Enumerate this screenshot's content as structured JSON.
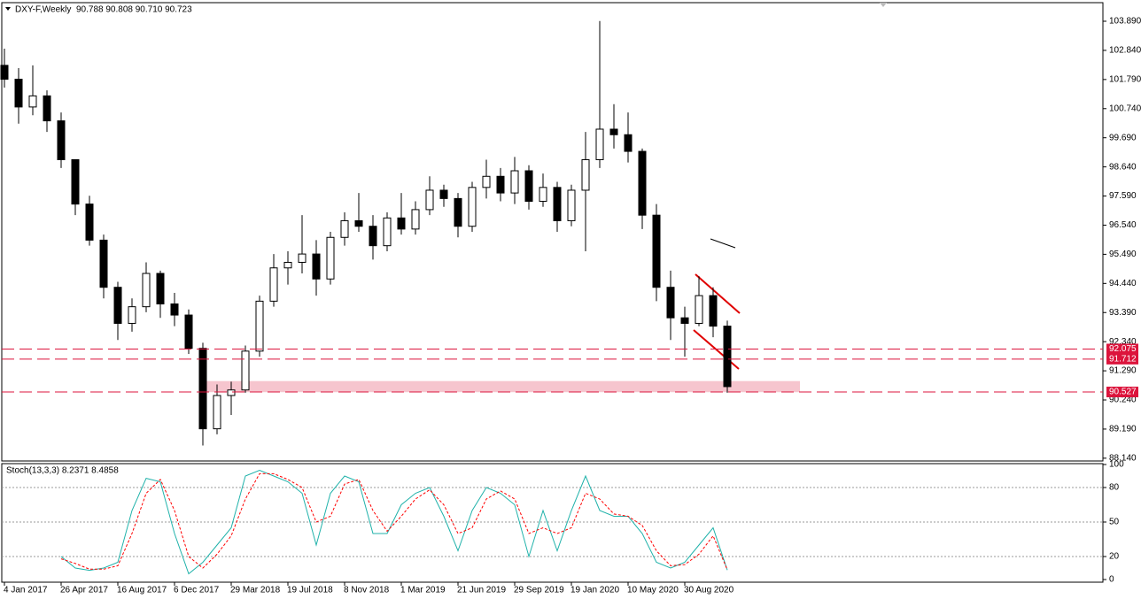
{
  "chart_data": [
    {
      "type": "candlestick",
      "title": "DXY-F,Weekly",
      "subtitle": "90.788 90.808 90.710 90.723",
      "categories": [
        "4 Jan 2017",
        null,
        null,
        null,
        "26 Apr 2017",
        null,
        null,
        null,
        "16 Aug 2017",
        null,
        null,
        null,
        "6 Dec 2017",
        null,
        null,
        null,
        "29 Mar 2018",
        null,
        null,
        null,
        "19 Jul 2018",
        null,
        null,
        null,
        "8 Nov 2018",
        null,
        null,
        null,
        "1 Mar 2019",
        null,
        null,
        null,
        "21 Jun 2019",
        null,
        null,
        null,
        "29 Sep 2019",
        null,
        null,
        null,
        "19 Jan 2020",
        null,
        null,
        null,
        "10 May 2020",
        null,
        null,
        null,
        "30 Aug 2020",
        null,
        null,
        null
      ],
      "open": [
        102.3,
        101.8,
        100.8,
        101.2,
        100.3,
        98.9,
        97.3,
        96.0,
        94.3,
        93.0,
        93.6,
        94.8,
        93.7,
        93.3,
        92.1,
        89.2,
        90.4,
        90.6,
        92.0,
        93.8,
        95.0,
        95.2,
        95.5,
        94.6,
        96.1,
        96.7,
        96.5,
        95.8,
        96.8,
        96.4,
        97.1,
        97.8,
        97.5,
        96.5,
        97.9,
        98.3,
        97.7,
        98.5,
        97.4,
        97.9,
        96.7,
        97.8,
        98.9,
        100.0,
        99.8,
        99.2,
        96.9,
        94.3,
        93.2,
        93.0,
        94.0,
        92.9
      ],
      "high": [
        102.9,
        102.2,
        102.3,
        101.4,
        100.6,
        98.9,
        97.6,
        96.2,
        94.5,
        93.9,
        95.2,
        94.9,
        94.1,
        93.5,
        92.3,
        90.8,
        90.9,
        92.2,
        94.0,
        95.5,
        95.6,
        96.9,
        96.0,
        96.3,
        97.0,
        97.7,
        96.9,
        97.0,
        97.7,
        97.4,
        98.3,
        98.0,
        97.7,
        98.1,
        98.9,
        98.6,
        99.0,
        98.7,
        98.4,
        98.1,
        98.0,
        99.9,
        103.9,
        100.9,
        100.6,
        99.3,
        97.3,
        94.9,
        93.6,
        94.7,
        94.3,
        93.1
      ],
      "low": [
        101.5,
        100.2,
        100.5,
        99.9,
        98.6,
        96.9,
        95.8,
        93.9,
        92.4,
        92.7,
        93.4,
        93.2,
        92.9,
        91.9,
        88.6,
        89.0,
        89.7,
        90.5,
        91.8,
        93.6,
        94.4,
        94.8,
        94.0,
        94.4,
        95.8,
        96.3,
        95.3,
        95.6,
        96.2,
        96.2,
        96.9,
        97.2,
        96.1,
        96.3,
        97.5,
        97.4,
        97.3,
        97.1,
        97.2,
        96.3,
        96.5,
        95.6,
        98.6,
        99.3,
        98.8,
        96.4,
        93.8,
        92.4,
        91.8,
        92.9,
        92.5,
        90.5
      ],
      "close": [
        101.8,
        100.8,
        101.2,
        100.3,
        98.9,
        97.3,
        96.0,
        94.3,
        93.0,
        93.6,
        94.8,
        93.7,
        93.3,
        92.1,
        89.2,
        90.4,
        90.6,
        92.0,
        93.8,
        95.0,
        95.2,
        95.5,
        94.6,
        96.1,
        96.7,
        96.5,
        95.8,
        96.8,
        96.4,
        97.1,
        97.8,
        97.5,
        96.5,
        97.9,
        98.3,
        97.7,
        98.5,
        97.4,
        97.9,
        96.7,
        97.8,
        98.9,
        100.0,
        99.8,
        99.2,
        96.9,
        94.3,
        93.2,
        93.0,
        94.0,
        92.9,
        90.72
      ],
      "up_color": "#ffffff",
      "down_color": "#000000",
      "ylim": [
        88.04,
        104.56
      ],
      "yticks": [
        {
          "value": 103.89,
          "label": "103.890"
        },
        {
          "value": 102.84,
          "label": "102.840"
        },
        {
          "value": 101.79,
          "label": "101.790"
        },
        {
          "value": 100.74,
          "label": "100.740"
        },
        {
          "value": 99.69,
          "label": "99.690"
        },
        {
          "value": 98.64,
          "label": "98.640"
        },
        {
          "value": 97.59,
          "label": "97.590"
        },
        {
          "value": 96.54,
          "label": "96.540"
        },
        {
          "value": 95.49,
          "label": "95.490"
        },
        {
          "value": 94.44,
          "label": "94.440"
        },
        {
          "value": 93.39,
          "label": "93.390"
        },
        {
          "value": 92.34,
          "label": "92.340"
        },
        {
          "value": 91.29,
          "label": "91.290"
        },
        {
          "value": 90.24,
          "label": "90.240"
        },
        {
          "value": 89.19,
          "label": "89.190"
        },
        {
          "value": 88.14,
          "label": "88.140"
        }
      ],
      "hlines": [
        92.075,
        91.712,
        90.527
      ],
      "hline_color": "#dc143c",
      "zone": [
        90.52,
        90.92
      ],
      "zone_color": "#f4b6c2"
    },
    {
      "type": "line",
      "title": "Stoch(13,3,3) 8.2371 8.4858",
      "series": [
        {
          "color": "#20b2aa",
          "values": [
            null,
            null,
            null,
            null,
            20,
            10,
            8,
            10,
            15,
            60,
            88,
            85,
            40,
            5,
            15,
            30,
            45,
            90,
            95,
            90,
            85,
            75,
            30,
            75,
            90,
            85,
            40,
            40,
            65,
            75,
            80,
            55,
            25,
            60,
            80,
            75,
            65,
            20,
            60,
            25,
            60,
            90,
            60,
            55,
            55,
            40,
            15,
            10,
            15,
            30,
            45,
            8.2371
          ]
        },
        {
          "color": "#ff0000",
          "dashed": true,
          "values": [
            null,
            null,
            null,
            null,
            18,
            14,
            9,
            9,
            12,
            40,
            75,
            87,
            60,
            20,
            10,
            22,
            38,
            70,
            92,
            92,
            87,
            80,
            50,
            55,
            83,
            87,
            60,
            42,
            55,
            70,
            78,
            65,
            40,
            45,
            70,
            77,
            70,
            40,
            45,
            40,
            45,
            75,
            70,
            57,
            55,
            47,
            25,
            12,
            13,
            22,
            38,
            8.4858
          ]
        }
      ],
      "ylim": [
        0,
        100
      ],
      "yticks": [
        100,
        80,
        50,
        20,
        0
      ]
    }
  ]
}
